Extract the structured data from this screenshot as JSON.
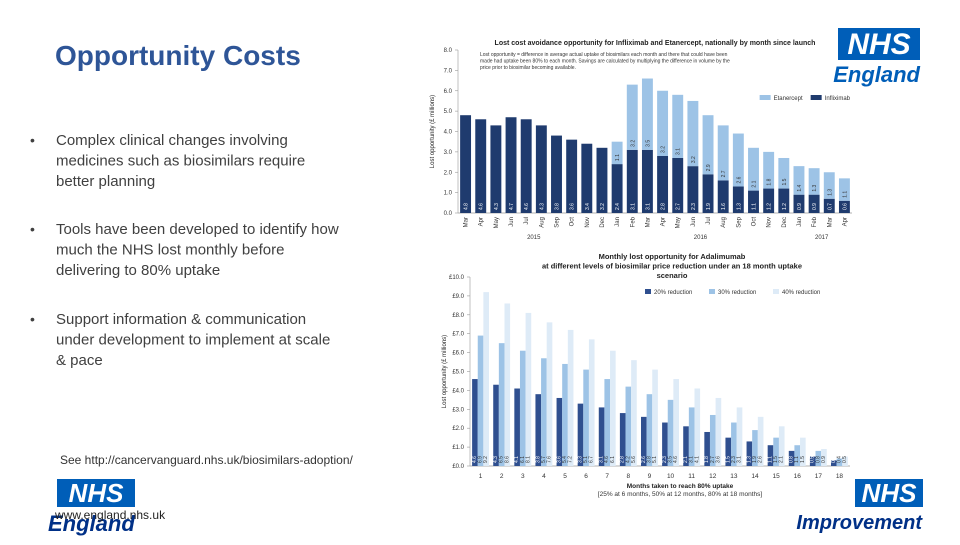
{
  "slide": {
    "title": "Opportunity Costs",
    "bullets": [
      [
        "Complex clinical changes involving",
        "medicines such as biosimilars require",
        "better planning"
      ],
      [
        "Tools have been developed to identify how",
        "much the NHS lost monthly before",
        "delivering to 80% uptake"
      ],
      [
        "Support information & communication",
        "under development to implement at scale",
        "& pace"
      ]
    ],
    "source": "See http://cancervanguard.nhs.uk/biosimilars-adoption/",
    "url": "www.england.nhs.uk",
    "logo_top": {
      "mark": "NHS",
      "org": "England"
    },
    "logo_bottom_left": {
      "mark": "NHS",
      "org": "England"
    },
    "logo_bottom_right": {
      "mark": "NHS",
      "org": "Improvement"
    }
  },
  "chart_data": [
    {
      "type": "stacked-bar",
      "title": "Lost cost avoidance opportunity for Infliximab and Etanercept, nationally by month since launch",
      "subtitle": [
        "Lost opportunity = difference in average actual uptake of biosimilars each month and there that could have been",
        "made had uptake been 80% to each month. Savings are calculated by multiplying the difference in volume by the",
        "price prior to biosimilar becoming available."
      ],
      "y_label": "Lost opportunity (£ millions)",
      "categories": [
        "Mar",
        "Apr",
        "May",
        "Jun",
        "Jul",
        "Aug",
        "Sep",
        "Oct",
        "Nov",
        "Dec",
        "Jan",
        "Feb",
        "Mar",
        "Apr",
        "May",
        "Jun",
        "Jul",
        "Aug",
        "Sep",
        "Oct",
        "Nov",
        "Dec",
        "Jan",
        "Feb",
        "Mar",
        "Apr"
      ],
      "x_groups": [
        {
          "label": "2015",
          "count": 10
        },
        {
          "label": "2016",
          "count": 12
        },
        {
          "label": "2017",
          "count": 4
        }
      ],
      "series": [
        {
          "name": "Infliximab",
          "color": "#1f3b6e",
          "values": [
            4.8,
            4.6,
            4.3,
            4.7,
            4.6,
            4.3,
            3.8,
            3.6,
            3.4,
            3.2,
            2.4,
            3.1,
            3.1,
            2.8,
            2.7,
            2.3,
            1.9,
            1.6,
            1.3,
            1.1,
            1.2,
            1.2,
            0.9,
            0.9,
            0.7,
            0.6
          ]
        },
        {
          "name": "Etanercept",
          "color": "#9dc3e6",
          "values": [
            null,
            null,
            null,
            null,
            null,
            null,
            null,
            null,
            null,
            null,
            1.1,
            3.2,
            3.5,
            3.2,
            3.1,
            3.2,
            2.9,
            2.7,
            2.6,
            2.1,
            1.8,
            1.5,
            1.4,
            1.3,
            1.3,
            1.1
          ]
        }
      ],
      "ylim": [
        0,
        8
      ],
      "yticks": [
        {
          "value": 0,
          "label": "0.0"
        },
        {
          "value": 1,
          "label": "1.0"
        },
        {
          "value": 2,
          "label": "2.0"
        },
        {
          "value": 3,
          "label": "3.0"
        },
        {
          "value": 4,
          "label": "4.0"
        },
        {
          "value": 5,
          "label": "5.0"
        },
        {
          "value": 6,
          "label": "6.0"
        },
        {
          "value": 7,
          "label": "7.0"
        },
        {
          "value": 8,
          "label": "8.0"
        }
      ],
      "grid": false
    },
    {
      "type": "grouped-bar",
      "title": [
        "Monthly lost opportunity for Adalimumab",
        "at different levels of biosimilar price reduction under an 18 month uptake",
        "scenario"
      ],
      "y_label": "Lost opportunity (£ millions)",
      "x_label": "Months taken to reach 80% uptake",
      "x_sublabel": "[25% at 6 months, 50% at 12 months, 80% at 18 months]",
      "categories": [
        1,
        2,
        3,
        4,
        5,
        6,
        7,
        8,
        9,
        10,
        11,
        12,
        13,
        14,
        15,
        16,
        17,
        18
      ],
      "series": [
        {
          "name": "20% reduction",
          "color": "#2f4f8f",
          "values": [
            4.6,
            4.3,
            4.1,
            3.8,
            3.6,
            3.3,
            3.1,
            2.8,
            2.6,
            2.3,
            2.1,
            1.8,
            1.5,
            1.3,
            1.1,
            0.8,
            0.5,
            0.3
          ]
        },
        {
          "name": "30% reduction",
          "color": "#9dc3e6",
          "values": [
            6.9,
            6.5,
            6.1,
            5.7,
            5.4,
            5.1,
            4.6,
            4.2,
            3.8,
            3.5,
            3.1,
            2.7,
            2.3,
            1.9,
            1.5,
            1.1,
            0.8,
            0.4
          ]
        },
        {
          "name": "40% reduction",
          "color": "#deebf7",
          "values": [
            9.2,
            8.6,
            8.1,
            7.6,
            7.2,
            6.7,
            6.1,
            5.6,
            5.1,
            4.6,
            4.1,
            3.6,
            3.1,
            2.6,
            2.1,
            1.5,
            0.9,
            0.5
          ]
        }
      ],
      "ylim": [
        0,
        10
      ],
      "yticks": [
        {
          "value": 0,
          "label": "£0.0"
        },
        {
          "value": 1,
          "label": "£1.0"
        },
        {
          "value": 2,
          "label": "£2.0"
        },
        {
          "value": 3,
          "label": "£3.0"
        },
        {
          "value": 4,
          "label": "£4.0"
        },
        {
          "value": 5,
          "label": "£5.0"
        },
        {
          "value": 6,
          "label": "£6.0"
        },
        {
          "value": 7,
          "label": "£7.0"
        },
        {
          "value": 8,
          "label": "£8.0"
        },
        {
          "value": 9,
          "label": "£9.0"
        },
        {
          "value": 10,
          "label": "£10.0"
        }
      ],
      "grid": false
    }
  ]
}
